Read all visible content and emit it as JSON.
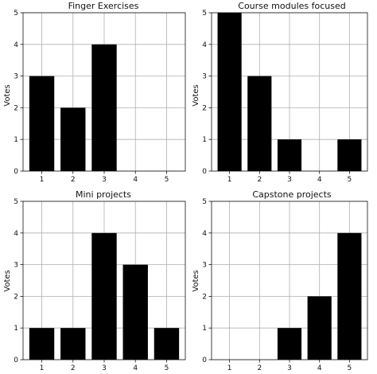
{
  "chart_data": [
    {
      "type": "bar",
      "title": "Finger Exercises",
      "ylabel": "Votes",
      "xlabel": "",
      "categories": [
        "1",
        "2",
        "3",
        "4",
        "5"
      ],
      "values": [
        3,
        2,
        4,
        0,
        0
      ],
      "ylim": [
        0,
        5
      ],
      "yticks": [
        "0",
        "1",
        "2",
        "3",
        "4",
        "5"
      ],
      "grid": true,
      "bar_color": "#000000"
    },
    {
      "type": "bar",
      "title": "Course modules focused",
      "ylabel": "Votes",
      "xlabel": "",
      "categories": [
        "1",
        "2",
        "3",
        "4",
        "5"
      ],
      "values": [
        5,
        3,
        1,
        0,
        1
      ],
      "ylim": [
        0,
        5
      ],
      "yticks": [
        "0",
        "1",
        "2",
        "3",
        "4",
        "5"
      ],
      "grid": true,
      "bar_color": "#000000"
    },
    {
      "type": "bar",
      "title": "Mini projects",
      "ylabel": "Votes",
      "xlabel": "",
      "categories": [
        "1",
        "2",
        "3",
        "4",
        "5"
      ],
      "values": [
        1,
        1,
        4,
        3,
        1
      ],
      "ylim": [
        0,
        5
      ],
      "yticks": [
        "0",
        "1",
        "2",
        "3",
        "4",
        "5"
      ],
      "grid": true,
      "bar_color": "#000000"
    },
    {
      "type": "bar",
      "title": "Capstone projects",
      "ylabel": "Votes",
      "xlabel": "",
      "categories": [
        "1",
        "2",
        "3",
        "4",
        "5"
      ],
      "values": [
        0,
        0,
        1,
        2,
        4
      ],
      "ylim": [
        0,
        5
      ],
      "yticks": [
        "0",
        "1",
        "2",
        "3",
        "4",
        "5"
      ],
      "grid": true,
      "bar_color": "#000000"
    }
  ]
}
